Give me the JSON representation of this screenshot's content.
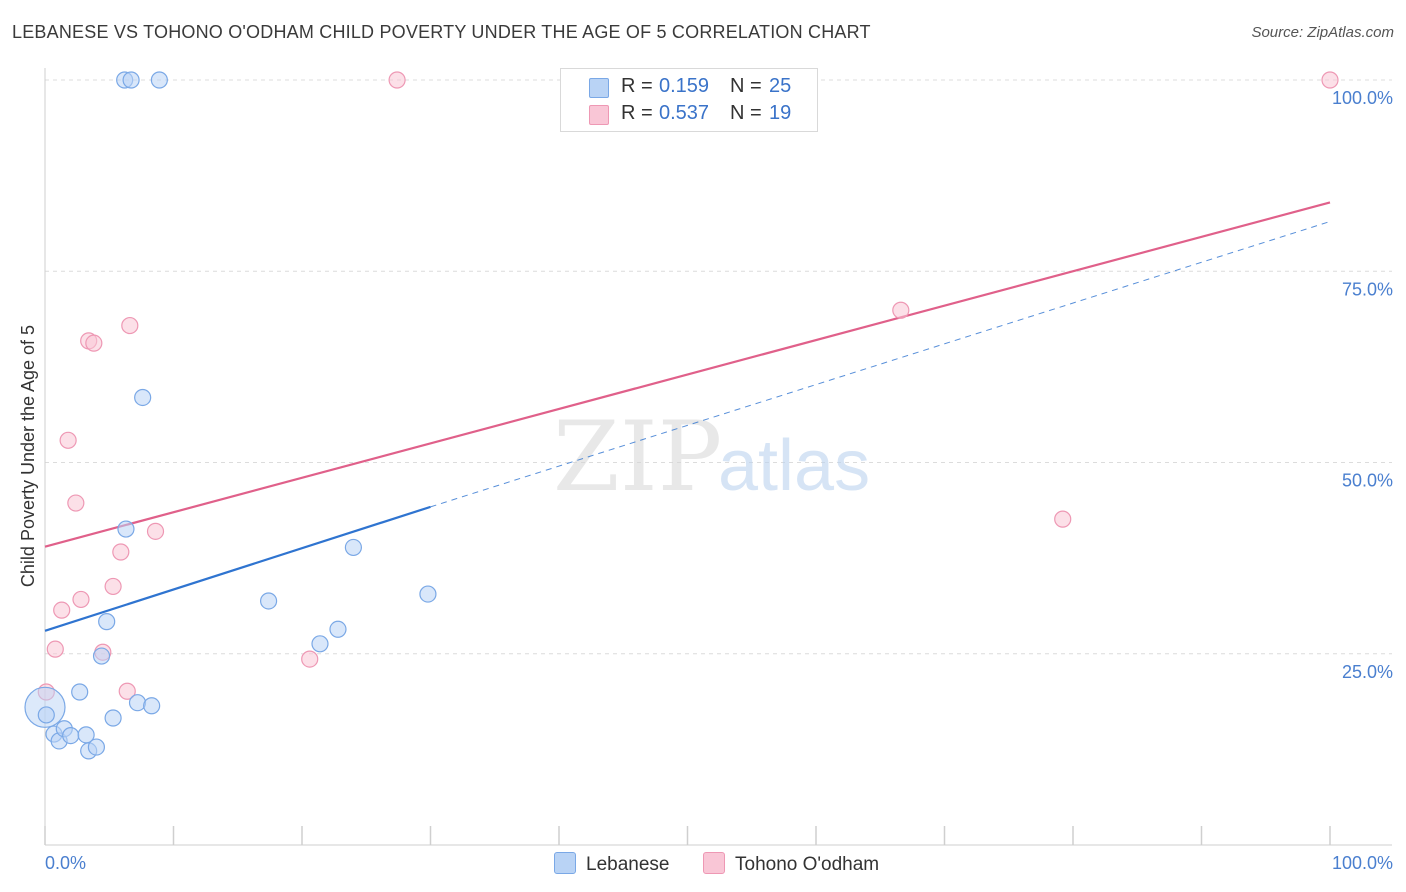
{
  "title": "LEBANESE VS TOHONO O'ODHAM CHILD POVERTY UNDER THE AGE OF 5 CORRELATION CHART",
  "source": "Source: ZipAtlas.com",
  "watermark": {
    "zip": "ZIP",
    "atlas": "atlas"
  },
  "colors": {
    "lebanese_fill": "#b9d3f5",
    "lebanese_stroke": "#7aa8e6",
    "lebanese_line": "#2f74d0",
    "tohono_fill": "#f9c6d6",
    "tohono_stroke": "#ee98b4",
    "tohono_line": "#e0608a",
    "axis_label": "#4a7fcf",
    "grid": "#dcdcdc"
  },
  "legend": {
    "rows": [
      {
        "r_label": "R =",
        "r_value": "0.159",
        "n_label": "N =",
        "n_value": "25"
      },
      {
        "r_label": "R =",
        "r_value": "0.537",
        "n_label": "N =",
        "n_value": "19"
      }
    ]
  },
  "bottom_legend": {
    "lebanese": "Lebanese",
    "tohono": "Tohono O'odham"
  },
  "chart_data": {
    "type": "scatter",
    "title": "LEBANESE VS TOHONO O'ODHAM CHILD POVERTY UNDER THE AGE OF 5 CORRELATION CHART",
    "xlabel": "",
    "ylabel": "Child Poverty Under the Age of 5",
    "xlim": [
      0,
      100
    ],
    "ylim": [
      0,
      100
    ],
    "x_tick_labels": [
      "0.0%",
      "100.0%"
    ],
    "y_ticks": [
      25,
      50,
      75,
      100
    ],
    "y_tick_labels": [
      "25.0%",
      "50.0%",
      "75.0%",
      "100.0%"
    ],
    "grid": true,
    "series": [
      {
        "name": "Lebanese",
        "r": 0.159,
        "n": 25,
        "points": [
          [
            0.0,
            18.0
          ],
          [
            0.7,
            14.5
          ],
          [
            1.1,
            13.6
          ],
          [
            1.5,
            15.2
          ],
          [
            2.0,
            14.3
          ],
          [
            2.7,
            20.0
          ],
          [
            3.2,
            14.4
          ],
          [
            3.4,
            12.3
          ],
          [
            4.0,
            12.8
          ],
          [
            4.4,
            24.7
          ],
          [
            4.8,
            29.2
          ],
          [
            5.3,
            16.6
          ],
          [
            6.3,
            41.3
          ],
          [
            7.2,
            18.6
          ],
          [
            7.6,
            58.5
          ],
          [
            8.3,
            18.2
          ],
          [
            6.2,
            100.0
          ],
          [
            6.7,
            100.0
          ],
          [
            8.9,
            100.0
          ],
          [
            17.4,
            31.9
          ],
          [
            21.4,
            26.3
          ],
          [
            22.8,
            28.2
          ],
          [
            24.0,
            38.9
          ],
          [
            29.8,
            32.8
          ],
          [
            0.1,
            17.0
          ]
        ],
        "trend": {
          "x0": 0,
          "y0": 28.0,
          "x1": 30,
          "y1": 44.2,
          "dashed_to_x": 100,
          "dashed_to_y": 81.5
        }
      },
      {
        "name": "Tohono O'odham",
        "r": 0.537,
        "n": 19,
        "points": [
          [
            0.1,
            20.0
          ],
          [
            0.8,
            25.6
          ],
          [
            1.3,
            30.7
          ],
          [
            1.8,
            52.9
          ],
          [
            2.4,
            44.7
          ],
          [
            2.8,
            32.1
          ],
          [
            3.4,
            65.9
          ],
          [
            3.8,
            65.6
          ],
          [
            4.5,
            25.2
          ],
          [
            5.3,
            33.8
          ],
          [
            5.9,
            38.3
          ],
          [
            6.4,
            20.1
          ],
          [
            6.6,
            67.9
          ],
          [
            8.6,
            41.0
          ],
          [
            20.6,
            24.3
          ],
          [
            27.4,
            100.0
          ],
          [
            66.6,
            69.9
          ],
          [
            79.2,
            42.6
          ],
          [
            100.0,
            100.0
          ]
        ],
        "trend": {
          "x0": 0,
          "y0": 39.0,
          "x1": 100,
          "y1": 84.0
        }
      }
    ]
  }
}
